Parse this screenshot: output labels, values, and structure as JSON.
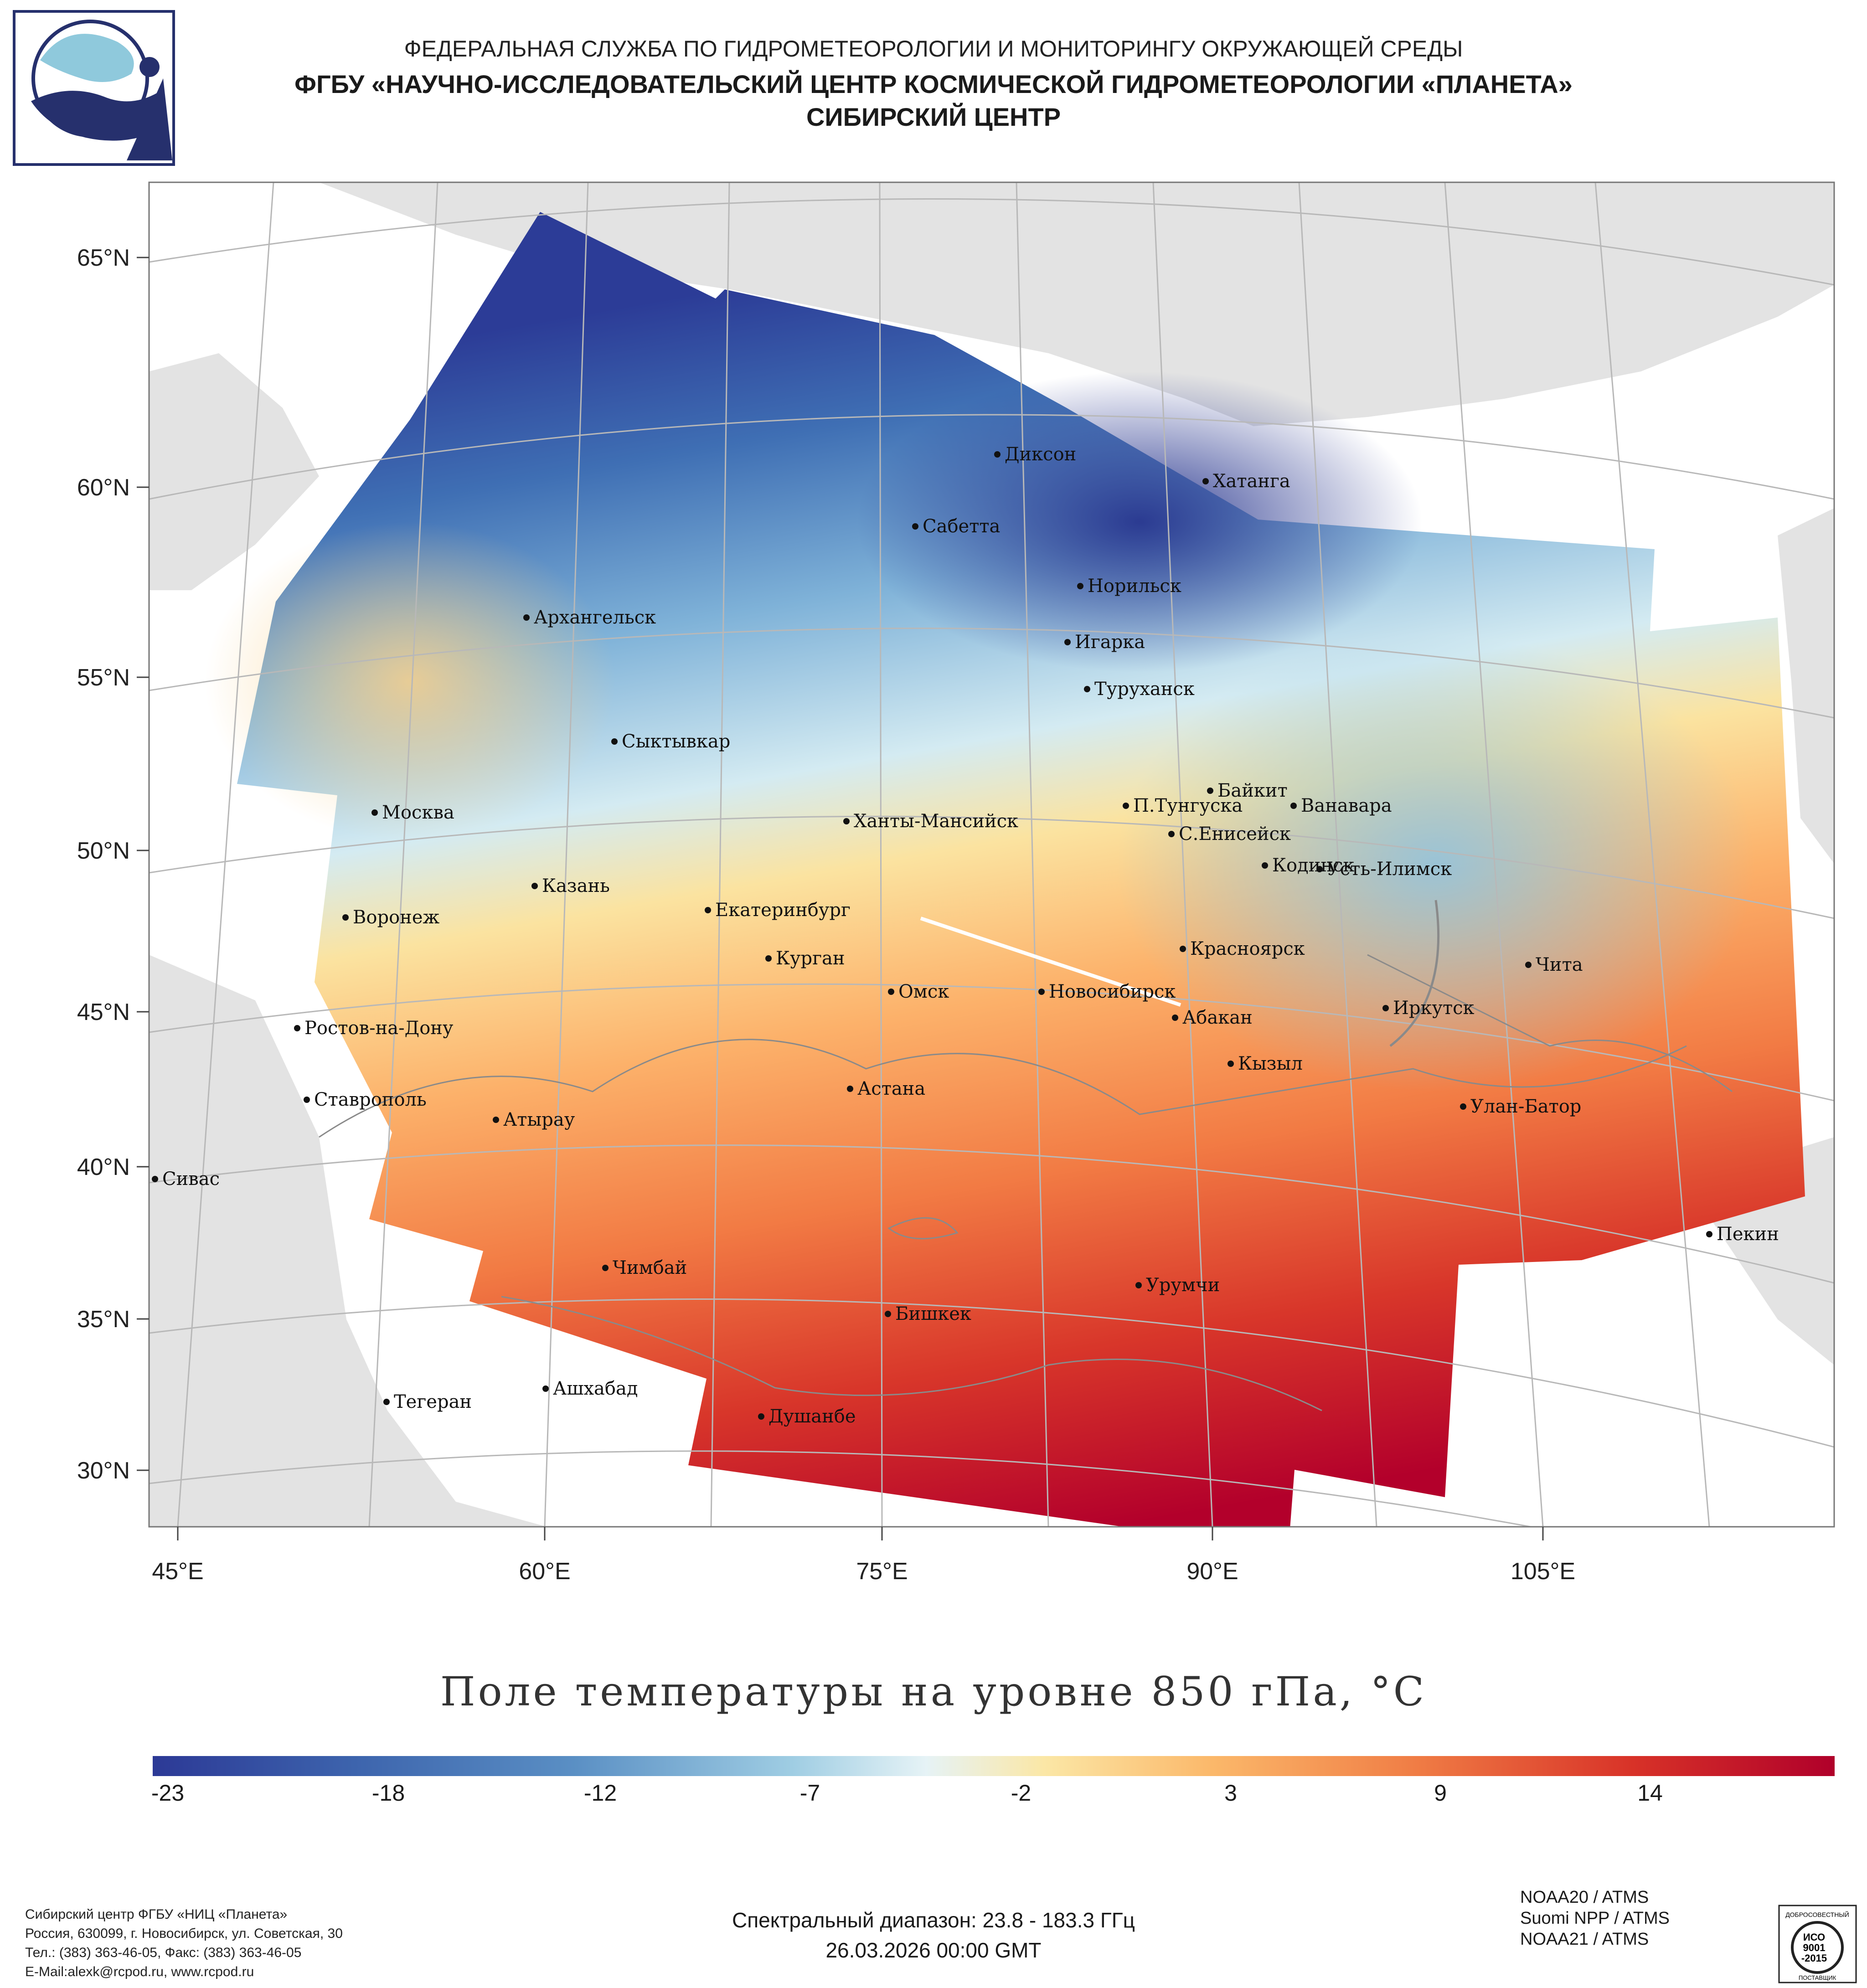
{
  "header": {
    "line1": "ФЕДЕРАЛЬНАЯ СЛУЖБА ПО ГИДРОМЕТЕОРОЛОГИИ И МОНИТОРИНГУ ОКРУЖАЮЩЕЙ СРЕДЫ",
    "line2": "ФГБУ «НАУЧНО-ИССЛЕДОВАТЕЛЬСКИЙ ЦЕНТР КОСМИЧЕСКОЙ ГИДРОМЕТЕОРОЛОГИИ «ПЛАНЕТА»",
    "line3": "СИБИРСКИЙ ЦЕНТР"
  },
  "map": {
    "lat_labels": [
      "65°N",
      "60°N",
      "55°N",
      "50°N",
      "45°N",
      "40°N",
      "35°N",
      "30°N"
    ],
    "lon_labels": [
      "45°E",
      "60°E",
      "75°E",
      "90°E",
      "105°E"
    ],
    "cities": [
      "Диксон",
      "Хатанга",
      "Сабетта",
      "Норильск",
      "Архангельск",
      "Игарка",
      "Туруханск",
      "Сыктывкар",
      "Байкит",
      "П.Тунгуска",
      "Ванавара",
      "Москва",
      "Ханты-Мансийск",
      "С.Енисейск",
      "Кодинск",
      "Усть-Илимск",
      "Казань",
      "Екатеринбург",
      "Воронеж",
      "Курган",
      "Красноярск",
      "Чита",
      "Омск",
      "Новосибирск",
      "Иркутск",
      "Абакан",
      "Ростов-на-Дону",
      "Кызыл",
      "Ставрополь",
      "Астана",
      "Улан-Батор",
      "Атырау",
      "Сивас",
      "Пекин",
      "Чимбай",
      "Урумчи",
      "Бишкек",
      "Ашхабад",
      "Тегеран",
      "Душанбе"
    ],
    "colors": {
      "land": "#e3e3e3",
      "border": "#9a9a9a",
      "grid": "#bdbdbd",
      "frame": "#777777"
    }
  },
  "chart_title": "Поле температуры на уровне 850 гПа, °С",
  "colorbar": {
    "ticks": [
      "-23",
      "-18",
      "-12",
      "-7",
      "-2",
      "3",
      "9",
      "14"
    ],
    "min": -24,
    "max": 18
  },
  "satellites": [
    "NOAA20 / ATMS",
    "Suomi NPP / ATMS",
    "NOAA21 / ATMS"
  ],
  "footer": {
    "org": "Сибирский центр ФГБУ «НИЦ «Планета»",
    "address": "Россия, 630099, г. Новосибирск, ул. Советская, 30",
    "phone": "Тел.: (383) 363-46-05, Факс: (383) 363-46-05",
    "email": "E-Mail:alexk@rcpod.ru, www.rcpod.ru",
    "spectral": "Спектральный диапазон: 23.8 - 183.3 ГГц",
    "datetime": "26.03.2026 00:00 GMT"
  },
  "iso_badge": {
    "top": "ДОБРОСОВЕСТНЫЙ",
    "mid": "ИСО",
    "num": "9001",
    "year": "-2015",
    "bottom": "ПОСТАВЩИК"
  }
}
